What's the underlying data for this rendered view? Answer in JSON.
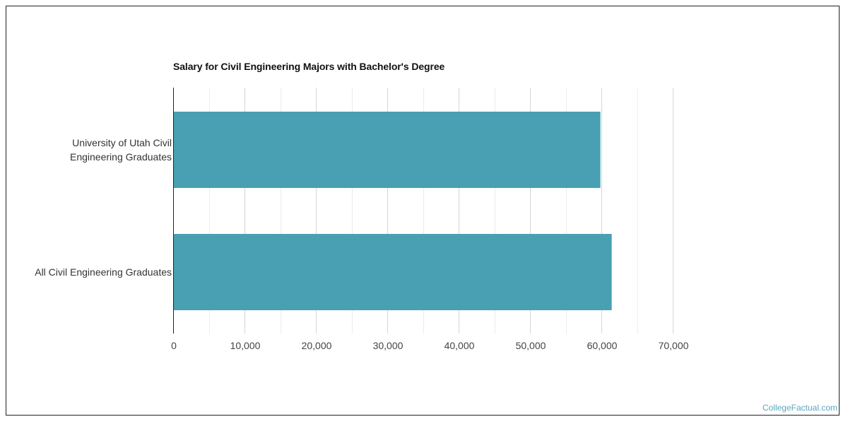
{
  "chart_data": {
    "type": "bar",
    "orientation": "horizontal",
    "title": "Salary for Civil Engineering Majors with Bachelor's Degree",
    "categories": [
      "University of Utah Civil Engineering Graduates",
      "All Civil Engineering Graduates"
    ],
    "category_label_lines": [
      [
        "University of Utah Civil",
        "Engineering Graduates"
      ],
      [
        "All Civil Engineering Graduates"
      ]
    ],
    "values": [
      59800,
      61400
    ],
    "xlabel": "",
    "ylabel": "",
    "xlim": [
      0,
      75000
    ],
    "x_ticks": [
      0,
      10000,
      20000,
      30000,
      40000,
      50000,
      60000,
      70000
    ],
    "x_tick_labels": [
      "0",
      "10,000",
      "20,000",
      "30,000",
      "40,000",
      "50,000",
      "60,000",
      "70,000"
    ],
    "minor_gridlines": [
      5000,
      15000,
      25000,
      35000,
      45000,
      55000,
      65000
    ],
    "grid": true,
    "legend": null,
    "bar_color": "#4aa0b3"
  },
  "watermark": "CollegeFactual.com",
  "colors": {
    "bar": "#4aa0b3",
    "watermark": "#5aa6c0",
    "axis": "#222222",
    "grid_major": "#d6d6d6",
    "grid_minor": "#ececec"
  }
}
